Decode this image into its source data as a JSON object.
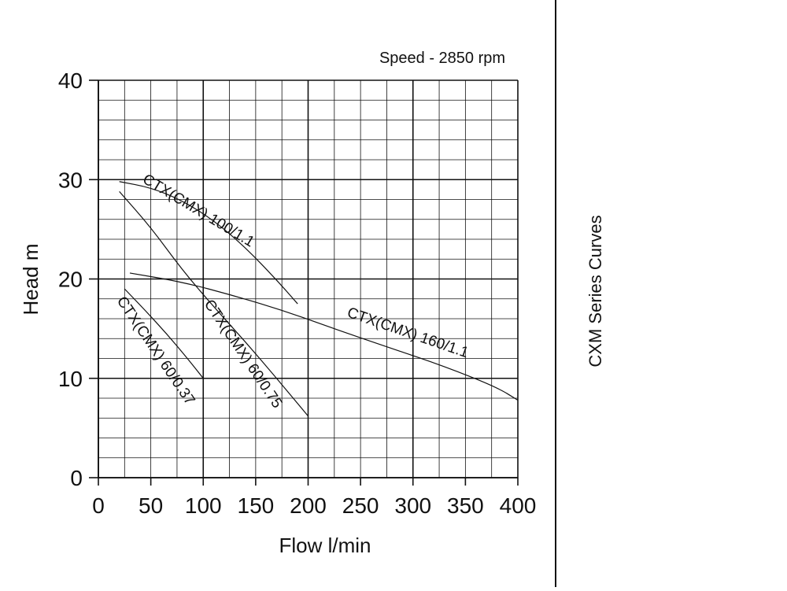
{
  "chart_data": {
    "type": "line",
    "subtitle": "Speed - 2850 rpm",
    "side_title": "CXM Series Curves",
    "xlabel": "Flow l/min",
    "ylabel": "Head m",
    "xlim": [
      0,
      400
    ],
    "ylim": [
      0,
      40
    ],
    "x_ticks": [
      "0",
      "50",
      "100",
      "150",
      "200",
      "250",
      "300",
      "350",
      "400"
    ],
    "y_ticks": [
      "0",
      "10",
      "20",
      "30",
      "40"
    ],
    "grid": true,
    "series": [
      {
        "name": "CTX(CMX) 100/1.1",
        "x": [
          20,
          50,
          80,
          110,
          140,
          170,
          190
        ],
        "y": [
          29.8,
          29.2,
          27.9,
          25.9,
          23.2,
          19.9,
          17.5
        ]
      },
      {
        "name": "CTX(CMX) 160/1.1",
        "x": [
          30,
          80,
          130,
          180,
          230,
          280,
          330,
          380,
          400
        ],
        "y": [
          20.6,
          19.7,
          18.3,
          16.7,
          14.8,
          13.0,
          11.2,
          9.1,
          7.8
        ]
      },
      {
        "name": "CTX(CMX) 60/0.75",
        "x": [
          20,
          50,
          80,
          110,
          140,
          170,
          200
        ],
        "y": [
          28.8,
          25.2,
          20.9,
          17.2,
          13.7,
          10.0,
          6.2
        ]
      },
      {
        "name": "CTX(CMX) 60/0.37",
        "x": [
          25,
          45,
          65,
          85,
          100
        ],
        "y": [
          19.0,
          16.8,
          14.5,
          12.0,
          10.0
        ]
      }
    ]
  }
}
